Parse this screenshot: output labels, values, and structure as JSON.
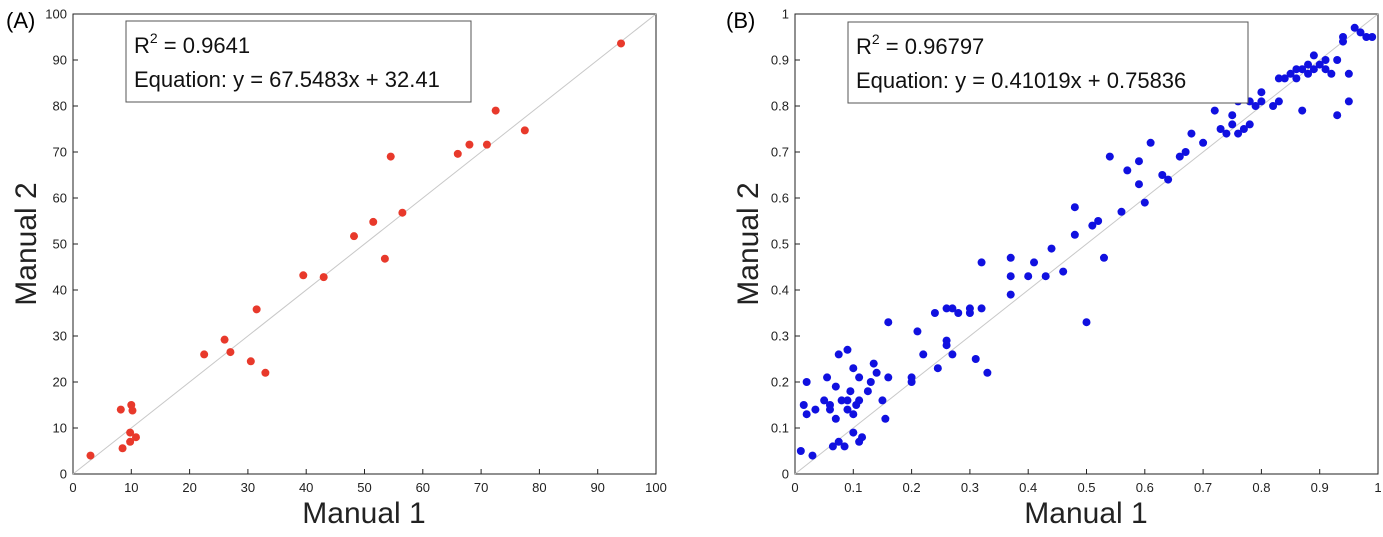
{
  "chart_data": [
    {
      "type": "scatter",
      "panel_label": "(A)",
      "xlabel": "Manual 1",
      "ylabel": "Manual 2",
      "xlim": [
        0,
        100
      ],
      "ylim": [
        0,
        100
      ],
      "xticks": [
        "0",
        "10",
        "20",
        "30",
        "40",
        "50",
        "60",
        "70",
        "80",
        "90",
        "100"
      ],
      "yticks": [
        "0",
        "10",
        "20",
        "30",
        "40",
        "50",
        "60",
        "70",
        "80",
        "90",
        "100"
      ],
      "annotation": {
        "r2_prefix": "R",
        "r2_sup": "2",
        "r2_value": " = 0.9641",
        "equation": "Equation: y = 67.5483x + 32.41"
      },
      "fit_line": [
        [
          0,
          0
        ],
        [
          100,
          100
        ]
      ],
      "point_color": "#e8392b",
      "points": [
        [
          3,
          4
        ],
        [
          8.2,
          14
        ],
        [
          8.5,
          5.6
        ],
        [
          9.8,
          9
        ],
        [
          9.8,
          7
        ],
        [
          10,
          15
        ],
        [
          10.2,
          13.8
        ],
        [
          10.8,
          8
        ],
        [
          22.5,
          26
        ],
        [
          26,
          29.2
        ],
        [
          27,
          26.5
        ],
        [
          30.5,
          24.5
        ],
        [
          31.5,
          35.8
        ],
        [
          33,
          22
        ],
        [
          39.5,
          43.2
        ],
        [
          43,
          42.8
        ],
        [
          48.2,
          51.7
        ],
        [
          51.5,
          54.8
        ],
        [
          53.5,
          46.8
        ],
        [
          54.5,
          69
        ],
        [
          56.5,
          56.8
        ],
        [
          66,
          69.6
        ],
        [
          68,
          71.6
        ],
        [
          71,
          71.6
        ],
        [
          72.5,
          79
        ],
        [
          77.5,
          74.7
        ],
        [
          94,
          93.6
        ]
      ]
    },
    {
      "type": "scatter",
      "panel_label": "(B)",
      "xlabel": "Manual 1",
      "ylabel": "Manual 2",
      "xlim": [
        0,
        1
      ],
      "ylim": [
        0,
        1
      ],
      "xticks": [
        "0",
        "0.1",
        "0.2",
        "0.3",
        "0.4",
        "0.5",
        "0.6",
        "0.7",
        "0.8",
        "0.9",
        "1"
      ],
      "yticks": [
        "0",
        "0.1",
        "0.2",
        "0.3",
        "0.4",
        "0.5",
        "0.6",
        "0.7",
        "0.8",
        "0.9",
        "1"
      ],
      "annotation": {
        "r2_prefix": "R",
        "r2_sup": "2",
        "r2_value": " = 0.96797",
        "equation": "Equation: y = 0.41019x + 0.75836"
      },
      "fit_line": [
        [
          0,
          0
        ],
        [
          1,
          1
        ]
      ],
      "point_color": "#1010e0",
      "points": [
        [
          0.01,
          0.05
        ],
        [
          0.015,
          0.15
        ],
        [
          0.02,
          0.13
        ],
        [
          0.02,
          0.2
        ],
        [
          0.03,
          0.04
        ],
        [
          0.035,
          0.14
        ],
        [
          0.05,
          0.16
        ],
        [
          0.055,
          0.21
        ],
        [
          0.06,
          0.14
        ],
        [
          0.06,
          0.15
        ],
        [
          0.065,
          0.06
        ],
        [
          0.07,
          0.12
        ],
        [
          0.07,
          0.19
        ],
        [
          0.075,
          0.07
        ],
        [
          0.075,
          0.26
        ],
        [
          0.08,
          0.16
        ],
        [
          0.085,
          0.06
        ],
        [
          0.09,
          0.14
        ],
        [
          0.09,
          0.16
        ],
        [
          0.09,
          0.27
        ],
        [
          0.095,
          0.18
        ],
        [
          0.1,
          0.09
        ],
        [
          0.1,
          0.13
        ],
        [
          0.1,
          0.23
        ],
        [
          0.105,
          0.15
        ],
        [
          0.11,
          0.07
        ],
        [
          0.11,
          0.16
        ],
        [
          0.11,
          0.21
        ],
        [
          0.115,
          0.08
        ],
        [
          0.125,
          0.18
        ],
        [
          0.13,
          0.2
        ],
        [
          0.135,
          0.24
        ],
        [
          0.14,
          0.22
        ],
        [
          0.15,
          0.16
        ],
        [
          0.155,
          0.12
        ],
        [
          0.16,
          0.21
        ],
        [
          0.16,
          0.33
        ],
        [
          0.2,
          0.2
        ],
        [
          0.2,
          0.21
        ],
        [
          0.21,
          0.31
        ],
        [
          0.22,
          0.26
        ],
        [
          0.24,
          0.35
        ],
        [
          0.245,
          0.23
        ],
        [
          0.26,
          0.28
        ],
        [
          0.26,
          0.29
        ],
        [
          0.26,
          0.36
        ],
        [
          0.27,
          0.26
        ],
        [
          0.27,
          0.36
        ],
        [
          0.28,
          0.35
        ],
        [
          0.3,
          0.35
        ],
        [
          0.3,
          0.36
        ],
        [
          0.31,
          0.25
        ],
        [
          0.32,
          0.36
        ],
        [
          0.32,
          0.46
        ],
        [
          0.33,
          0.22
        ],
        [
          0.37,
          0.39
        ],
        [
          0.37,
          0.43
        ],
        [
          0.37,
          0.47
        ],
        [
          0.4,
          0.43
        ],
        [
          0.41,
          0.46
        ],
        [
          0.43,
          0.43
        ],
        [
          0.44,
          0.49
        ],
        [
          0.46,
          0.44
        ],
        [
          0.48,
          0.52
        ],
        [
          0.48,
          0.58
        ],
        [
          0.5,
          0.33
        ],
        [
          0.51,
          0.54
        ],
        [
          0.52,
          0.55
        ],
        [
          0.53,
          0.47
        ],
        [
          0.54,
          0.69
        ],
        [
          0.56,
          0.57
        ],
        [
          0.57,
          0.66
        ],
        [
          0.59,
          0.63
        ],
        [
          0.59,
          0.68
        ],
        [
          0.6,
          0.59
        ],
        [
          0.61,
          0.72
        ],
        [
          0.63,
          0.65
        ],
        [
          0.64,
          0.64
        ],
        [
          0.66,
          0.69
        ],
        [
          0.67,
          0.7
        ],
        [
          0.68,
          0.74
        ],
        [
          0.7,
          0.72
        ],
        [
          0.72,
          0.79
        ],
        [
          0.73,
          0.75
        ],
        [
          0.74,
          0.74
        ],
        [
          0.75,
          0.76
        ],
        [
          0.75,
          0.78
        ],
        [
          0.76,
          0.74
        ],
        [
          0.76,
          0.81
        ],
        [
          0.77,
          0.75
        ],
        [
          0.78,
          0.76
        ],
        [
          0.78,
          0.81
        ],
        [
          0.79,
          0.8
        ],
        [
          0.8,
          0.81
        ],
        [
          0.8,
          0.83
        ],
        [
          0.82,
          0.8
        ],
        [
          0.83,
          0.81
        ],
        [
          0.83,
          0.86
        ],
        [
          0.84,
          0.86
        ],
        [
          0.85,
          0.87
        ],
        [
          0.86,
          0.86
        ],
        [
          0.86,
          0.88
        ],
        [
          0.87,
          0.79
        ],
        [
          0.87,
          0.88
        ],
        [
          0.88,
          0.87
        ],
        [
          0.88,
          0.89
        ],
        [
          0.89,
          0.88
        ],
        [
          0.89,
          0.91
        ],
        [
          0.9,
          0.89
        ],
        [
          0.91,
          0.88
        ],
        [
          0.91,
          0.9
        ],
        [
          0.92,
          0.87
        ],
        [
          0.93,
          0.78
        ],
        [
          0.93,
          0.9
        ],
        [
          0.94,
          0.94
        ],
        [
          0.94,
          0.95
        ],
        [
          0.95,
          0.81
        ],
        [
          0.95,
          0.87
        ],
        [
          0.96,
          0.97
        ],
        [
          0.97,
          0.96
        ],
        [
          0.98,
          0.95
        ],
        [
          0.99,
          0.95
        ]
      ]
    }
  ]
}
